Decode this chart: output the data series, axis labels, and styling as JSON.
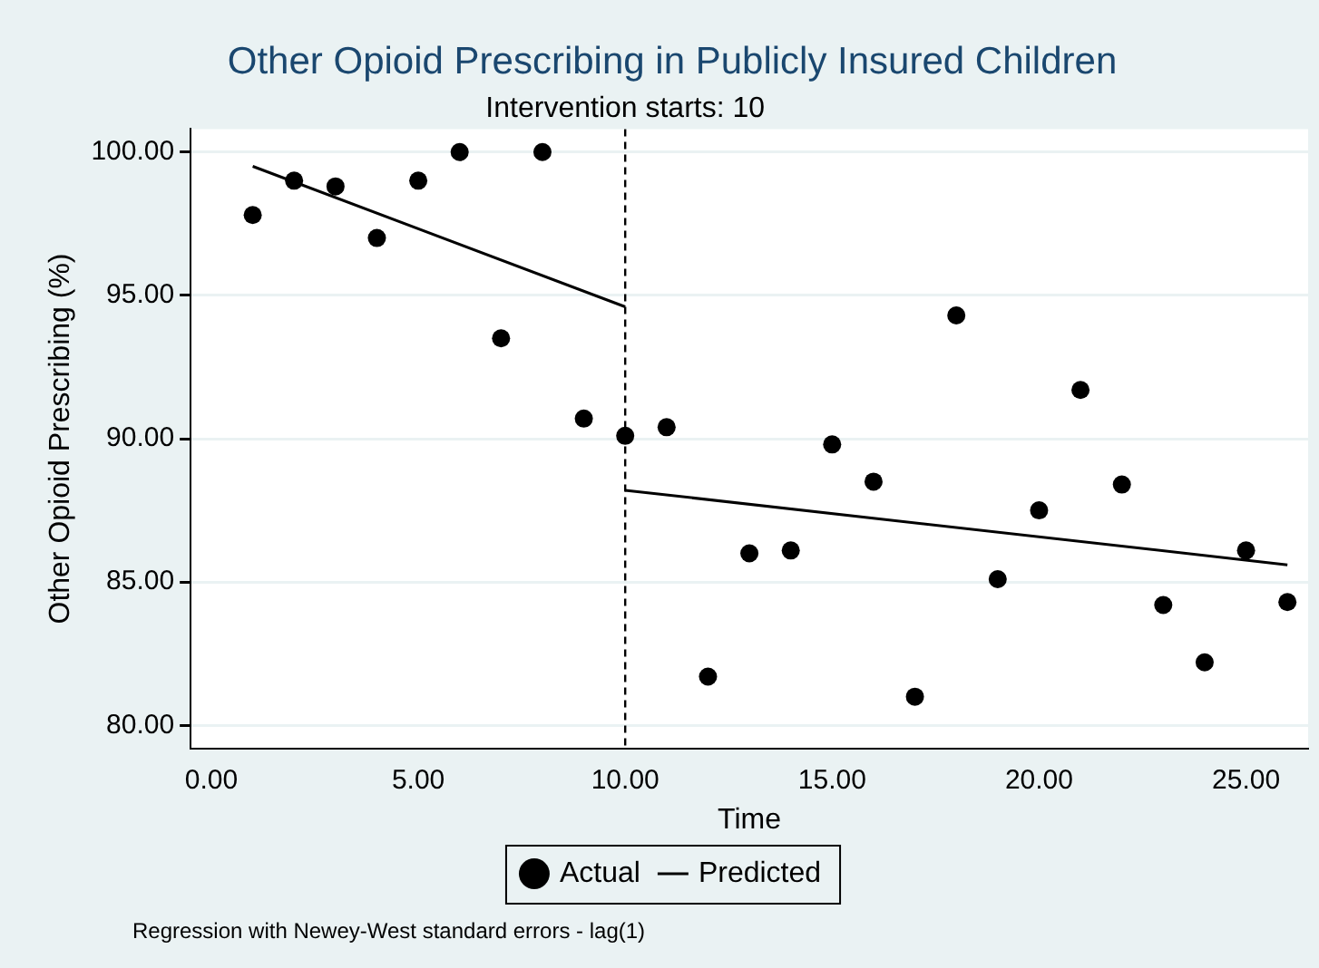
{
  "chart_data": {
    "type": "scatter",
    "title": "Other Opioid Prescribing in Publicly Insured Children",
    "xlabel": "Time",
    "ylabel": "Other Opioid Prescribing (%)",
    "xlim": [
      -0.5,
      26.5
    ],
    "ylim": [
      79.2,
      100.8
    ],
    "xticks": [
      {
        "value": 0,
        "label": "0.00"
      },
      {
        "value": 5,
        "label": "5.00"
      },
      {
        "value": 10,
        "label": "10.00"
      },
      {
        "value": 15,
        "label": "15.00"
      },
      {
        "value": 20,
        "label": "20.00"
      },
      {
        "value": 25,
        "label": "25.00"
      }
    ],
    "yticks": [
      {
        "value": 80,
        "label": "80.00"
      },
      {
        "value": 85,
        "label": "85.00"
      },
      {
        "value": 90,
        "label": "90.00"
      },
      {
        "value": 95,
        "label": "95.00"
      },
      {
        "value": 100,
        "label": "100.00"
      }
    ],
    "grid": "y",
    "legend": "bottom",
    "series": [
      {
        "name": "Actual",
        "color": "#000000",
        "marker": "circle",
        "x": [
          1,
          2,
          3,
          4,
          5,
          6,
          7,
          8,
          9,
          10,
          11,
          12,
          13,
          14,
          15,
          16,
          17,
          18,
          19,
          20,
          21,
          22,
          23,
          24,
          25,
          26
        ],
        "values": [
          97.8,
          99.0,
          98.8,
          97.0,
          99.0,
          100.0,
          93.5,
          100.0,
          90.7,
          90.1,
          90.4,
          81.7,
          86.0,
          86.1,
          89.8,
          88.5,
          81.0,
          94.3,
          85.1,
          87.5,
          91.7,
          88.4,
          84.2,
          82.2,
          86.1,
          84.3
        ]
      },
      {
        "name": "Predicted",
        "type": "line",
        "color": "#000000",
        "marker": "none",
        "line_style": "solid",
        "x": [
          1,
          10,
          null,
          10,
          26
        ],
        "values": [
          99.5,
          94.6,
          null,
          88.2,
          85.6
        ]
      }
    ],
    "ref_lines": [
      {
        "axis": "x",
        "value": 10,
        "label": "Intervention starts: 10",
        "line_style": "dashed",
        "color": "#000000"
      }
    ],
    "annotations": [
      "Regression with Newey-West standard errors - lag(1)"
    ]
  }
}
